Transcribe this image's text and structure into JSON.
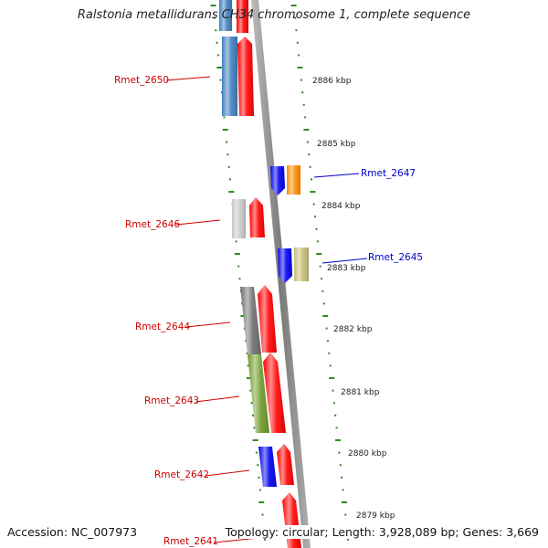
{
  "title": "Ralstonia metallidurans CH34 chromosome 1, complete sequence",
  "footer": {
    "accession": "Accession: NC_007973",
    "summary": "Topology: circular; Length: 3,928,089 bp; Genes: 3,669"
  },
  "colors": {
    "backbone": "#8c8c8c",
    "tick": "#2e8b1e",
    "forward_label": "#cc0000",
    "reverse_label": "#0000cc",
    "gene_red": "#ff0000",
    "gene_blue": "#0000ee",
    "gene_steel": "#3f7fbf",
    "gene_orange": "#ff8c00",
    "gene_gray": "#c8c8c8",
    "gene_khaki": "#c8bd78",
    "gene_darkgray": "#6e6e6e",
    "gene_olive": "#6e9a28"
  },
  "kbp_labels": [
    "2886 kbp",
    "2885 kbp",
    "2884 kbp",
    "2883 kbp",
    "2882 kbp",
    "2881 kbp",
    "2880 kbp",
    "2879 kbp"
  ],
  "gene_labels": [
    {
      "text": "Rmet_2650",
      "strand": "forward"
    },
    {
      "text": "Rmet_2647",
      "strand": "reverse"
    },
    {
      "text": "Rmet_2646",
      "strand": "forward"
    },
    {
      "text": "Rmet_2645",
      "strand": "reverse"
    },
    {
      "text": "Rmet_2644",
      "strand": "forward"
    },
    {
      "text": "Rmet_2643",
      "strand": "forward"
    },
    {
      "text": "Rmet_2642",
      "strand": "forward"
    },
    {
      "text": "Rmet_2641",
      "strand": "forward"
    }
  ]
}
